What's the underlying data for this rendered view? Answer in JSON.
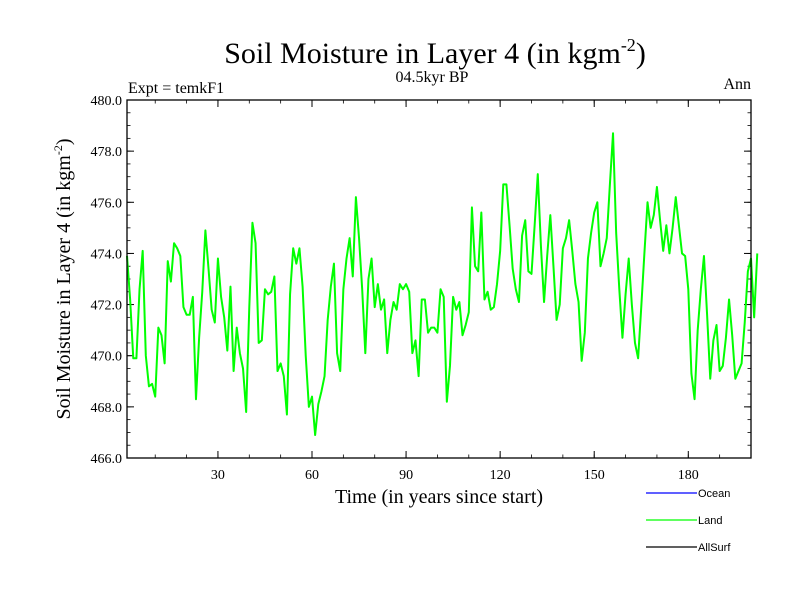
{
  "chart_data": {
    "type": "line",
    "title": "Soil Moisture in Layer 4 (in kgm",
    "title_sup": "-2",
    "title_close": ")",
    "subtitle": "04.5kyr BP",
    "left_label": "Expt = temkF1",
    "right_label": "Ann",
    "xlabel": "Time (in years since start)",
    "ylabel": "Soil Moisture in Layer 4 (in kgm",
    "ylabel_sup": "-2",
    "ylabel_close": ")",
    "xlim": [
      1,
      200
    ],
    "ylim": [
      466.0,
      480.0
    ],
    "xticks": [
      30,
      60,
      90,
      120,
      150,
      180
    ],
    "yticks": [
      466.0,
      468.0,
      470.0,
      472.0,
      474.0,
      476.0,
      478.0,
      480.0
    ],
    "ytick_labels": [
      "466.0",
      "468.0",
      "470.0",
      "472.0",
      "474.0",
      "476.0",
      "478.0",
      "480.0"
    ],
    "legend": [
      {
        "name": "Ocean",
        "color": "#0000ff"
      },
      {
        "name": "Land",
        "color": "#00ff00"
      },
      {
        "name": "AllSurf",
        "color": "#000000"
      }
    ],
    "series": [
      {
        "name": "Land",
        "color": "#00ff00",
        "values": [
          473.9,
          472.2,
          469.9,
          469.9,
          472.6,
          474.1,
          470.0,
          468.8,
          468.9,
          468.4,
          471.1,
          470.8,
          469.7,
          473.7,
          472.9,
          474.4,
          474.2,
          473.9,
          471.9,
          471.6,
          471.6,
          472.3,
          468.3,
          470.7,
          472.5,
          474.9,
          473.4,
          471.8,
          471.3,
          473.8,
          472.3,
          471.5,
          470.2,
          472.7,
          469.4,
          471.1,
          470.1,
          469.5,
          467.8,
          471.9,
          475.2,
          474.4,
          470.5,
          470.6,
          472.6,
          472.4,
          472.5,
          473.1,
          469.4,
          469.7,
          469.2,
          467.7,
          472.4,
          474.2,
          473.6,
          474.2,
          472.7,
          470.0,
          468.0,
          468.4,
          466.9,
          468.1,
          468.6,
          469.2,
          471.4,
          472.7,
          473.6,
          470.1,
          469.4,
          472.6,
          473.8,
          474.6,
          473.1,
          476.2,
          474.6,
          472.6,
          470.1,
          473.0,
          473.8,
          471.9,
          472.8,
          471.8,
          472.2,
          470.1,
          471.4,
          472.1,
          471.8,
          472.8,
          472.6,
          472.8,
          472.5,
          470.1,
          470.6,
          469.2,
          472.2,
          472.2,
          470.9,
          471.1,
          471.1,
          470.9,
          472.6,
          472.3,
          468.2,
          469.6,
          472.3,
          471.8,
          472.1,
          470.8,
          471.2,
          471.7,
          475.8,
          473.5,
          473.3,
          475.6,
          472.2,
          472.5,
          471.8,
          471.9,
          472.8,
          474.1,
          476.7,
          476.7,
          475.1,
          473.4,
          472.6,
          472.1,
          474.7,
          475.3,
          473.3,
          473.2,
          475.1,
          477.1,
          474.3,
          472.1,
          473.9,
          475.5,
          473.5,
          471.4,
          472.0,
          474.2,
          474.6,
          475.3,
          474.1,
          472.8,
          472.1,
          469.8,
          470.9,
          473.8,
          474.8,
          475.6,
          476.0,
          473.5,
          474.0,
          474.6,
          476.7,
          478.7,
          474.8,
          472.6,
          470.7,
          472.4,
          473.8,
          472.0,
          470.5,
          469.9,
          471.9,
          474.0,
          476.0,
          475.0,
          475.5,
          476.6,
          475.3,
          474.1,
          475.1,
          474.0,
          475.0,
          476.2,
          475.1,
          474.0,
          473.9,
          472.6,
          469.3,
          468.3,
          471.0,
          472.6,
          473.9,
          471.6,
          469.1,
          470.6,
          471.2,
          469.4,
          469.6,
          470.7,
          472.2,
          470.8,
          469.1,
          469.4,
          469.7,
          471.3,
          473.3,
          473.8,
          471.5,
          474.0
        ]
      }
    ]
  }
}
